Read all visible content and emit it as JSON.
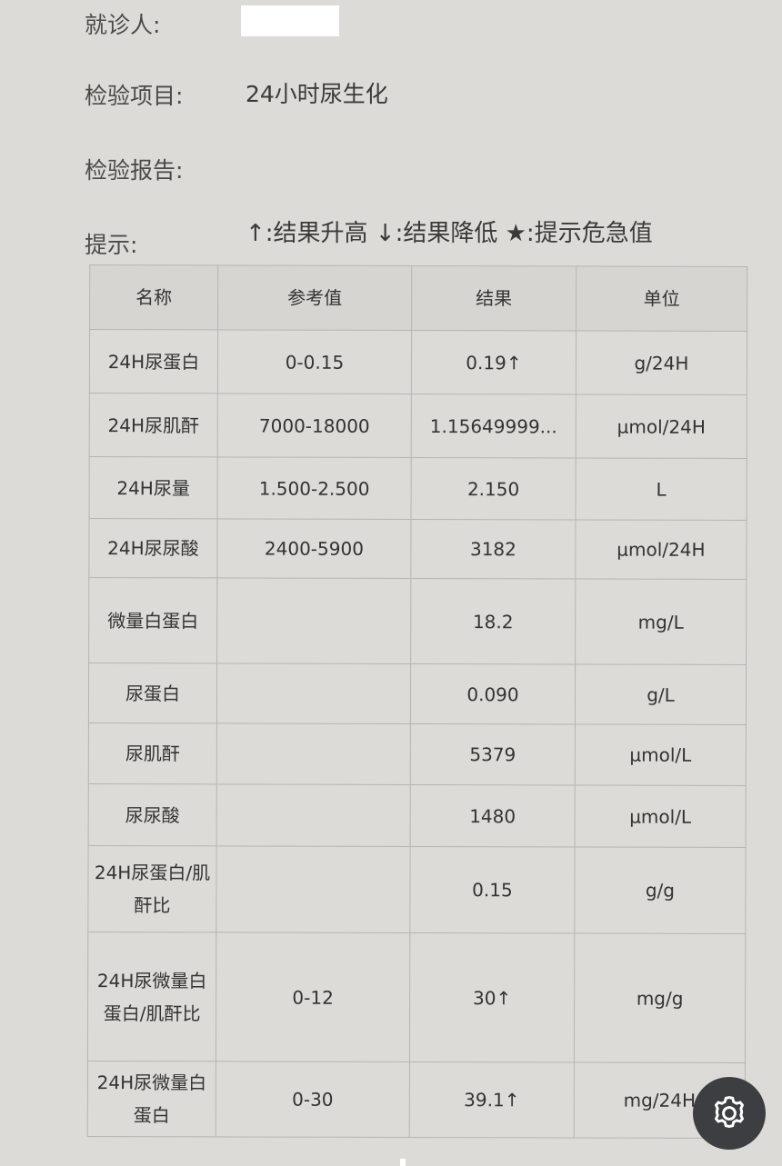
{
  "header": {
    "patient_label": "就诊人:",
    "test_item_label": "检验项目:",
    "test_item_value": "24小时尿生化",
    "report_label": "检验报告:",
    "hint_label": "提示:",
    "hint_value": "↑:结果升高 ↓:结果降低 ★:提示危急值"
  },
  "table": {
    "columns": [
      "名称",
      "参考值",
      "结果",
      "单位"
    ],
    "rows": [
      {
        "name": "24H尿蛋白",
        "ref": "0-0.15",
        "result": "0.19↑",
        "unit": "g/24H"
      },
      {
        "name": "24H尿肌酐",
        "ref": "7000-18000",
        "result": "1.15649999...",
        "unit": "μmol/24H"
      },
      {
        "name": "24H尿量",
        "ref": "1.500-2.500",
        "result": "2.150",
        "unit": "L"
      },
      {
        "name": "24H尿尿酸",
        "ref": "2400-5900",
        "result": "3182",
        "unit": "μmol/24H"
      },
      {
        "name": "微量白蛋白",
        "ref": "",
        "result": "18.2",
        "unit": "mg/L"
      },
      {
        "name": "尿蛋白",
        "ref": "",
        "result": "0.090",
        "unit": "g/L"
      },
      {
        "name": "尿肌酐",
        "ref": "",
        "result": "5379",
        "unit": "μmol/L"
      },
      {
        "name": "尿尿酸",
        "ref": "",
        "result": "1480",
        "unit": "μmol/L"
      },
      {
        "name": "24H尿蛋白/肌酐比",
        "ref": "",
        "result": "0.15",
        "unit": "g/g"
      },
      {
        "name": "24H尿微量白蛋白/肌酐比",
        "ref": "0-12",
        "result": "30↑",
        "unit": "mg/g"
      },
      {
        "name": "24H尿微量白蛋白",
        "ref": "0-30",
        "result": "39.1↑",
        "unit": "mg/24H"
      }
    ]
  },
  "settings_icon": "gear-icon"
}
